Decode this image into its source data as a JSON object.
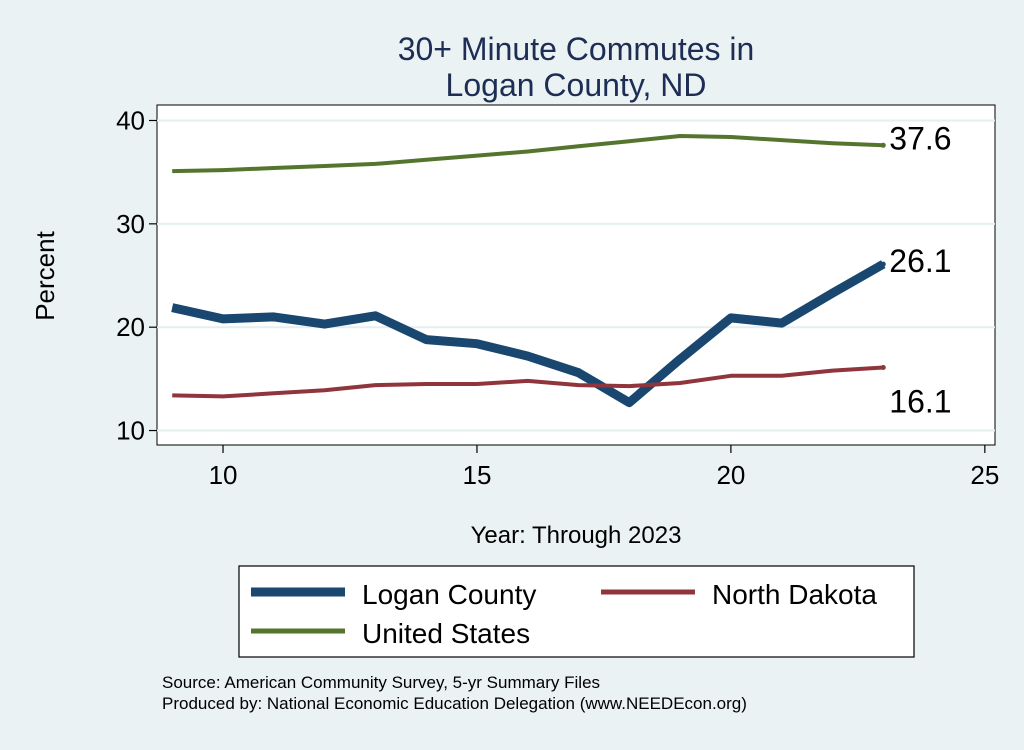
{
  "chart_data": {
    "type": "line",
    "title_lines": [
      "30+ Minute Commutes in",
      "Logan County, ND"
    ],
    "xlabel": "Year: Through 2023",
    "ylabel": "Percent",
    "xlim": [
      8.7,
      25.2
    ],
    "ylim": [
      8.6,
      41.5
    ],
    "xticks": [
      10,
      15,
      20,
      25
    ],
    "yticks": [
      10,
      20,
      30,
      40
    ],
    "grid": true,
    "legend_placement": "bottom",
    "x": [
      9,
      10,
      11,
      12,
      13,
      14,
      15,
      16,
      17,
      18,
      19,
      20,
      21,
      22,
      23
    ],
    "series": [
      {
        "name": "Logan County",
        "color": "#1a476f",
        "values": [
          21.9,
          20.8,
          21.0,
          20.3,
          21.1,
          18.8,
          18.4,
          17.2,
          15.6,
          12.7,
          16.9,
          20.9,
          20.4,
          23.3,
          26.1
        ],
        "end_label": "26.1"
      },
      {
        "name": "North Dakota",
        "color": "#90353b",
        "values": [
          13.4,
          13.3,
          13.6,
          13.9,
          14.4,
          14.5,
          14.5,
          14.8,
          14.4,
          14.3,
          14.6,
          15.3,
          15.3,
          15.8,
          16.1
        ],
        "end_label": "16.1"
      },
      {
        "name": "United States",
        "color": "#55752f",
        "values": [
          35.1,
          35.2,
          35.4,
          35.6,
          35.8,
          36.2,
          36.6,
          37.0,
          37.5,
          38.0,
          38.5,
          38.4,
          38.1,
          37.8,
          37.6
        ],
        "end_label": "37.6"
      }
    ],
    "legend": [
      {
        "label": "Logan County",
        "color": "#1a476f"
      },
      {
        "label": "North Dakota",
        "color": "#90353b"
      },
      {
        "label": "United States",
        "color": "#55752f"
      }
    ],
    "notes": [
      "Source: American Community Survey, 5-yr Summary Files",
      "Produced by: National Economic Education Delegation (www.NEEDEcon.org)"
    ]
  }
}
